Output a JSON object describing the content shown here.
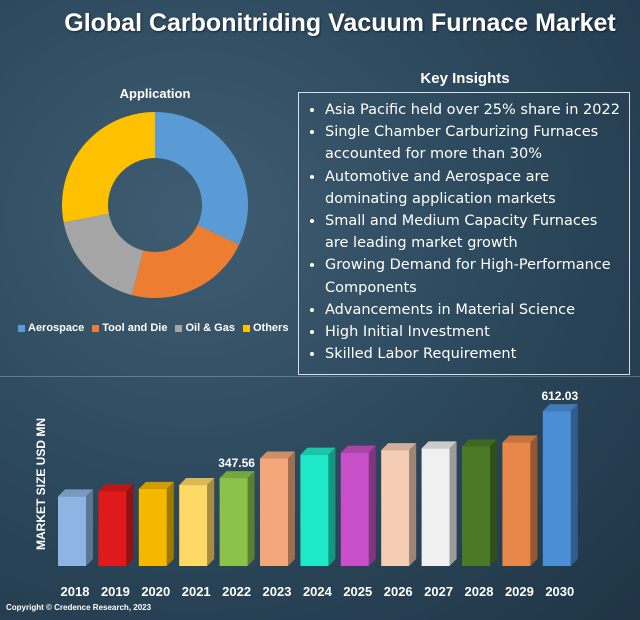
{
  "title": "Global Carbonitriding Vacuum Furnace Market",
  "insights": {
    "heading": "Key Insights",
    "items": [
      "Asia Pacific held over 25% share in 2022",
      "Single Chamber Carburizing Furnaces accounted for more than 30%",
      "Automotive and Aerospace are dominating application markets",
      "Small and Medium Capacity Furnaces are leading market growth",
      "Growing Demand for High-Performance Components",
      "Advancements in Material Science",
      "High Initial Investment",
      "Skilled Labor Requirement"
    ]
  },
  "copyright": "Copyright © Credence Research, 2023",
  "chart_data": [
    {
      "type": "pie",
      "title": "Application",
      "donut": true,
      "categories": [
        "Aerospace",
        "Tool and Die",
        "Oil & Gas",
        "Others"
      ],
      "values": [
        32,
        22,
        18,
        28
      ],
      "colors": [
        "#5b9bd5",
        "#ed7d31",
        "#a5a5a5",
        "#ffc000"
      ],
      "legend_position": "bottom"
    },
    {
      "type": "bar",
      "ylabel": "MARKET SIZE USD MN",
      "categories": [
        "2018",
        "2019",
        "2020",
        "2021",
        "2022",
        "2023",
        "2024",
        "2025",
        "2026",
        "2027",
        "2028",
        "2029",
        "2030"
      ],
      "values": [
        275,
        295,
        305,
        320,
        347.56,
        425,
        440,
        448,
        458,
        465,
        473,
        488,
        612.03
      ],
      "data_labels": {
        "2022": "347.56",
        "2030": "612.03"
      },
      "colors": [
        "#8db4e2",
        "#e01a1a",
        "#f5b800",
        "#ffd966",
        "#8bc34a",
        "#f4a77a",
        "#1de9c8",
        "#c84fc8",
        "#f5cdb5",
        "#f0f0f0",
        "#4a7a25",
        "#e8874a",
        "#4a8fd6"
      ],
      "ylim": [
        0,
        650
      ],
      "grid": false
    }
  ]
}
